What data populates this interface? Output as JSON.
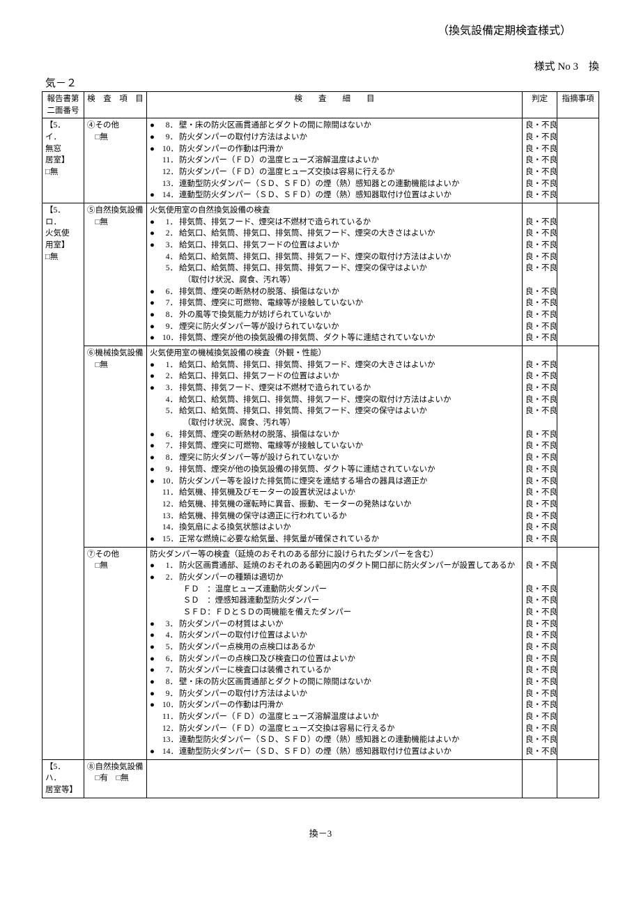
{
  "header": {
    "doc_title": "（換気設備定期検査様式）",
    "form_no": "様式 No 3　換",
    "sub_no": "気－２"
  },
  "table": {
    "headers": {
      "report": "報告書第\n二面番号",
      "item": "検　査　項　目",
      "detail": "検　　査　　細　　目",
      "judge": "判定",
      "note": "指摘事項"
    },
    "sections": [
      {
        "report": "【5．イ．\n無窓\n居室】\n□無",
        "item": "④その他\n　□無",
        "title": null,
        "rows": [
          {
            "m": "●",
            "n": "8．",
            "t": "壁・床の防火区画貫通部とダクトの間に隙間はないか",
            "j": "良・不良"
          },
          {
            "m": "●",
            "n": "9．",
            "t": "防火ダンパーの取付け方法はよいか",
            "j": "良・不良"
          },
          {
            "m": "●",
            "n": "10．",
            "t": "防火ダンパーの作動は円滑か",
            "j": "良・不良"
          },
          {
            "m": "",
            "n": "11．",
            "t": "防火ダンパー（ＦＤ）の温度ヒューズ溶解温度はよいか",
            "j": "良・不良"
          },
          {
            "m": "",
            "n": "12．",
            "t": "防火ダンパー（ＦＤ）の温度ヒューズ交換は容易に行えるか",
            "j": "良・不良"
          },
          {
            "m": "",
            "n": "13．",
            "t": "連動型防火ダンパー（ＳＤ、ＳＦＤ）の煙（熱）感知器との連動機能はよいか",
            "j": "良・不良"
          },
          {
            "m": "●",
            "n": "14．",
            "t": "連動型防火ダンパー（ＳＤ、ＳＦＤ）の煙（熱）感知器取付け位置はよいか",
            "j": "良・不良"
          }
        ]
      },
      {
        "report": "【5．ロ．\n火気使\n用室】\n□無",
        "item": "⑤自然換気設備\n　□無",
        "title": "火気使用室の自然換気設備の検査",
        "rows": [
          {
            "m": "●",
            "n": "1．",
            "t": "排気筒、排気フード、煙突は不燃材で造られているか",
            "j": "良・不良"
          },
          {
            "m": "●",
            "n": "2．",
            "t": "給気口、給気筒、排気口、排気筒、排気フード、煙突の大きさはよいか",
            "j": "良・不良"
          },
          {
            "m": "●",
            "n": "3．",
            "t": "給気口、排気口、排気フードの位置はよいか",
            "j": "良・不良"
          },
          {
            "m": "",
            "n": "4．",
            "t": "給気口、給気筒、排気口、排気筒、排気フード、煙突の取付け方法はよいか",
            "j": "良・不良"
          },
          {
            "m": "",
            "n": "5．",
            "t": "給気口、給気筒、排気口、排気筒、排気フード、煙突の保守はよいか",
            "j": "良・不良"
          },
          {
            "m": "",
            "n": "",
            "t": "（取付け状況、腐食、汚れ等）",
            "j": "",
            "indent": true
          },
          {
            "m": "●",
            "n": "6．",
            "t": "排気筒、煙突の断熱材の脱落、損傷はないか",
            "j": "良・不良"
          },
          {
            "m": "●",
            "n": "7．",
            "t": "排気筒、煙突に可燃物、電線等が接触していないか",
            "j": "良・不良"
          },
          {
            "m": "●",
            "n": "8．",
            "t": "外の風等で換気能力が妨げられていないか",
            "j": "良・不良"
          },
          {
            "m": "●",
            "n": "9．",
            "t": "煙突に防火ダンパー等が設けられていないか",
            "j": "良・不良"
          },
          {
            "m": "●",
            "n": "10．",
            "t": "排気筒、煙突が他の換気設備の排気筒、ダクト等に連結されていないか",
            "j": "良・不良"
          }
        ]
      },
      {
        "report": "",
        "item": "⑥機械換気設備\n　□無",
        "title": "火気使用室の機械換気設備の検査（外観・性能）",
        "rows": [
          {
            "m": "●",
            "n": "1．",
            "t": "給気口、給気筒、排気口、排気筒、排気フード、煙突の大きさはよいか",
            "j": "良・不良"
          },
          {
            "m": "●",
            "n": "2．",
            "t": "給気口、排気口、排気フードの位置はよいか",
            "j": "良・不良"
          },
          {
            "m": "●",
            "n": "3．",
            "t": "排気筒、排気フード、煙突は不燃材で造られているか",
            "j": "良・不良"
          },
          {
            "m": "",
            "n": "4．",
            "t": "給気口、給気筒、排気口、排気筒、排気フード、煙突の取付け方法はよいか",
            "j": "良・不良"
          },
          {
            "m": "",
            "n": "5．",
            "t": "給気口、給気筒、排気口、排気筒、排気フード、煙突の保守はよいか",
            "j": "良・不良"
          },
          {
            "m": "",
            "n": "",
            "t": "（取付け状況、腐食、汚れ等）",
            "j": "",
            "indent": true
          },
          {
            "m": "●",
            "n": "6．",
            "t": "排気筒、煙突の断熱材の脱落、損傷はないか",
            "j": "良・不良"
          },
          {
            "m": "●",
            "n": "7．",
            "t": "排気筒、煙突に可燃物、電線等が接触していないか",
            "j": "良・不良"
          },
          {
            "m": "●",
            "n": "8．",
            "t": "煙突に防火ダンパー等が設けられていないか",
            "j": "良・不良"
          },
          {
            "m": "●",
            "n": "9．",
            "t": "排気筒、煙突が他の換気設備の排気筒、ダクト等に連結されていないか",
            "j": "良・不良"
          },
          {
            "m": "●",
            "n": "10．",
            "t": "防火ダンパー等を設けた排気筒に煙突を連結する場合の器具は適正か",
            "j": "良・不良"
          },
          {
            "m": "",
            "n": "11．",
            "t": "給気機、排気機及びモーターの設置状況はよいか",
            "j": "良・不良"
          },
          {
            "m": "",
            "n": "12．",
            "t": "給気機、排気機の運転時に異音、振動、モーターの発熱はないか",
            "j": "良・不良"
          },
          {
            "m": "",
            "n": "13．",
            "t": "給気機、排気機の保守は適正に行われているか",
            "j": "良・不良"
          },
          {
            "m": "",
            "n": "14．",
            "t": "換気扇による換気状態はよいか",
            "j": "良・不良"
          },
          {
            "m": "●",
            "n": "15．",
            "t": "正常な燃焼に必要な給気量、排気量が確保されているか",
            "j": "良・不良"
          }
        ]
      },
      {
        "report": "",
        "item": "⑦その他\n　□無",
        "title": "防火ダンパー等の検査（延焼のおそれのある部分に設けられたダンパーを含む）",
        "rows": [
          {
            "m": "●",
            "n": "1．",
            "t": "防火区画貫通部、延焼のおそれのある範囲内のダクト開口部に防火ダンパーが設置してあるか",
            "j": "良・不良"
          },
          {
            "m": "●",
            "n": "2．",
            "t": "防火ダンパーの種類は適切か",
            "j": ""
          },
          {
            "m": "",
            "n": "",
            "t": "ＦＤ　：温度ヒューズ連動防火ダンパー",
            "j": "良・不良",
            "indent": true
          },
          {
            "m": "",
            "n": "",
            "t": "ＳＤ　：煙感知器連動型防火ダンパー",
            "j": "良・不良",
            "indent": true
          },
          {
            "m": "",
            "n": "",
            "t": "ＳＦＤ：ＦＤとＳＤの両機能を備えたダンパー",
            "j": "良・不良",
            "indent": true
          },
          {
            "m": "●",
            "n": "3．",
            "t": "防火ダンパーの材質はよいか",
            "j": "良・不良"
          },
          {
            "m": "●",
            "n": "4．",
            "t": "防火ダンパーの取付け位置はよいか",
            "j": "良・不良"
          },
          {
            "m": "●",
            "n": "5．",
            "t": "防火ダンパー点検用の点検口はあるか",
            "j": "良・不良"
          },
          {
            "m": "●",
            "n": "6．",
            "t": "防火ダンパーの点検口及び検査口の位置はよいか",
            "j": "良・不良"
          },
          {
            "m": "●",
            "n": "7．",
            "t": "防火ダンパーに検査口は装備されているか",
            "j": "良・不良"
          },
          {
            "m": "●",
            "n": "8．",
            "t": "壁・床の防火区画貫通部とダクトの間に隙間はないか",
            "j": "良・不良"
          },
          {
            "m": "●",
            "n": "9．",
            "t": "防火ダンパーの取付け方法はよいか",
            "j": "良・不良"
          },
          {
            "m": "●",
            "n": "10．",
            "t": "防火ダンパーの作動は円滑か",
            "j": "良・不良"
          },
          {
            "m": "",
            "n": "11．",
            "t": "防火ダンパー（ＦＤ）の温度ヒューズ溶解温度はよいか",
            "j": "良・不良"
          },
          {
            "m": "",
            "n": "12．",
            "t": "防火ダンパー（ＦＤ）の温度ヒューズ交換は容易に行えるか",
            "j": "良・不良"
          },
          {
            "m": "",
            "n": "13．",
            "t": "連動型防火ダンパー（ＳＤ、ＳＦＤ）の煙（熱）感知器との連動機能はよいか",
            "j": "良・不良"
          },
          {
            "m": "●",
            "n": "14．",
            "t": "連動型防火ダンパー（ＳＤ、ＳＦＤ）の煙（熱）感知器取付け位置はよいか",
            "j": "良・不良"
          }
        ]
      },
      {
        "report": "【5．ハ．\n居室等】",
        "item": "⑧自然換気設備\n　□有　□無",
        "title": null,
        "rows": [
          {
            "m": "",
            "n": "",
            "t": "",
            "j": ""
          }
        ]
      }
    ]
  },
  "footer": "換－3",
  "style": {
    "text_color": "#000000",
    "background": "#ffffff",
    "border_color": "#000000",
    "font_family": "MS Mincho, serif",
    "font_size_body": 12,
    "font_size_header": 16
  }
}
